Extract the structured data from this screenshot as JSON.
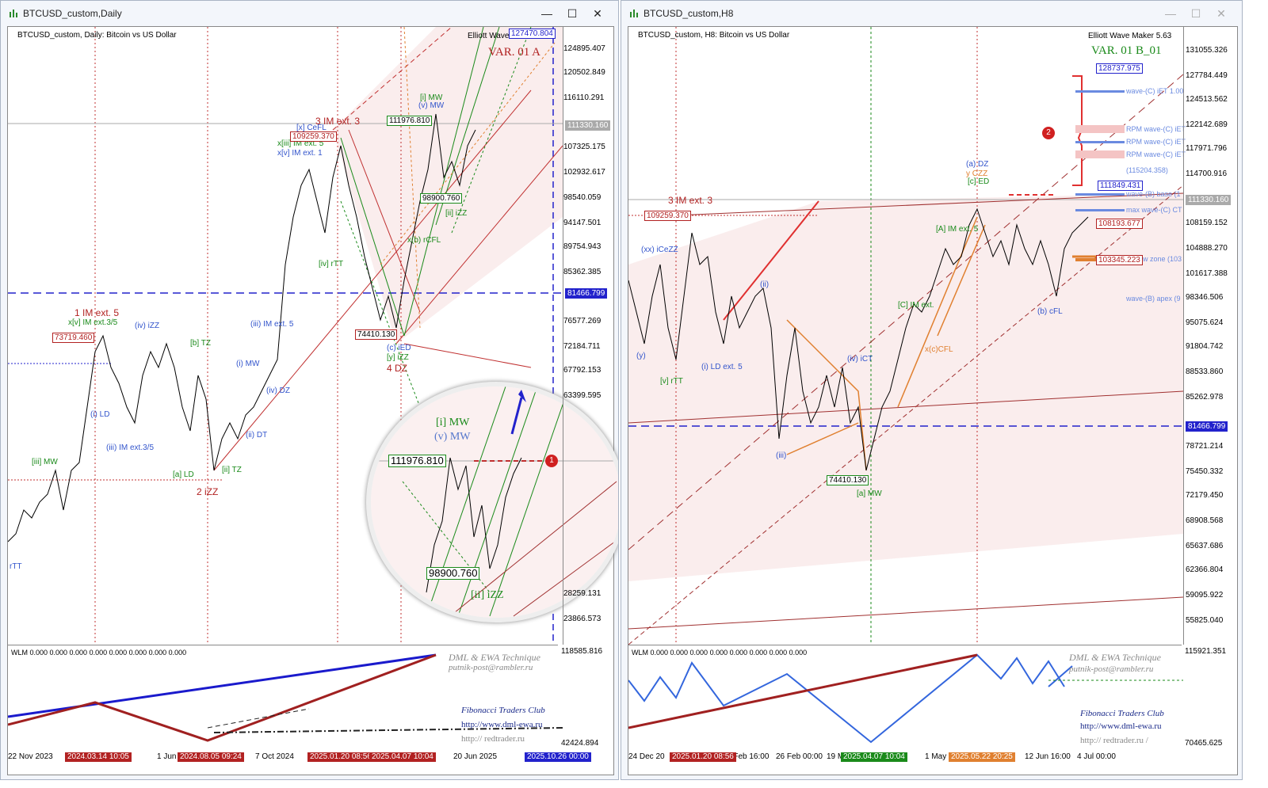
{
  "left": {
    "window_title": "BTCUSD_custom,Daily",
    "chart_info": "BTCUSD_custom, Daily:  Bitcoin vs US Dollar",
    "variant": "VAR. 01 A",
    "ewm": "Elliott Wave Ma",
    "prices": [
      "124895.407",
      "120502.849",
      "116110.291",
      "107325.175",
      "102932.617",
      "98540.059",
      "94147.501",
      "89754.943",
      "85362.385",
      "76577.269",
      "72184.711",
      "67792.153",
      "63399.595",
      "28259.131",
      "23866.573"
    ],
    "price_current": "111330.160",
    "price_hline": "81466.799",
    "price_top": "127470.804",
    "boxes": {
      "p1": "109259.370",
      "p2": "73719.460",
      "p3": "111976.810",
      "p4": "74410.130",
      "p5": "98900.760",
      "zoom1": "111976.810",
      "zoom2": "98900.760"
    },
    "dates": [
      "22 Nov 2023",
      "1 Jun",
      "7 Oct 2024",
      "20 Jun 2025"
    ],
    "date_highlights": [
      "2024.03.14 10:05",
      "2024.08.05 09:24",
      "2025.01.20 08:56",
      "2025.04.07 10:04",
      "2025.10.26 00:00"
    ],
    "wave_labels": {
      "im3": "3 IM ext. 3",
      "im1": "1 IM ext. 5",
      "zz2": "2 iZZ",
      "dz4": "4 DZ",
      "cefl": "[x] CeFL",
      "xiii": "x[iii] IM ext. 5",
      "xv": "x[v] IM ext. 1",
      "xiim": "x[v] IM ext.3/5",
      "iv_izz": "(iv) iZZ",
      "iii_im": "(iii) IM ext.3/5",
      "iii_im5": "(iii) IM ext. 5",
      "i_mw": "(i) MW",
      "iii_mw": "[iii] MW",
      "ld": "(i) LD",
      "aLD": "[a] LD",
      "tz": "[b] TZ",
      "iiTZ": "[ii] TZ",
      "iiDT": "(ii) DT",
      "ivDZ": "(iv) DZ",
      "iMW": "[i] MW",
      "vMW": "(v) MW",
      "iiizz": "[ii] iZZ",
      "cfl": "x(b) rCFL",
      "rtt": "[iv] rTT",
      "cied": "(c) iED",
      "yzz": "[y] iZZ",
      "tt": "rTT"
    },
    "wlm": "WLM 0.000 0.000 0.000 0.000 0.000 0.000 0.000 0.000",
    "ind_price": "118585.816",
    "ind_price2": "42424.894",
    "dml": "DML & EWA Technique",
    "email": "putnik-post@rambler.ru",
    "fib": "Fibonacci   Traders   Club",
    "url1": "http://www.dml-ewa.ru",
    "url2": "http://  redtrader.ru",
    "marker": "1"
  },
  "right": {
    "window_title": "BTCUSD_custom,H8",
    "chart_info": "BTCUSD_custom, H8:  Bitcoin vs US Dollar",
    "ewm": "Elliott Wave Maker 5.63",
    "variant": "VAR. 01 B_01",
    "prices": [
      "131055.326",
      "127784.449",
      "124513.562",
      "122142.689",
      "117971.796",
      "114700.916",
      "108159.152",
      "104888.270",
      "101617.388",
      "98346.506",
      "95075.624",
      "91804.742",
      "88533.860",
      "85262.978",
      "78721.214",
      "75450.332",
      "72179.450",
      "68908.568",
      "65637.686",
      "62366.804",
      "59095.922",
      "55825.040"
    ],
    "price_current": "111330.160",
    "price_hline": "81466.799",
    "price_top": "128737.975",
    "boxes": {
      "p1": "109259.370",
      "p2": "108193.677",
      "p3": "103345.223",
      "p4": "74410.130",
      "p5": "111849.431"
    },
    "level_labels": [
      "wave-(C) iET 1.00",
      "RPM wave-(C) iET",
      "RPM wave-(C) iET",
      "RPM wave-(C) iET",
      "(115204.358)",
      "wave-(B) base (1",
      "max wave-(C) CT",
      "low zone (103",
      "wave-(B) apex (9"
    ],
    "dates": [
      "24 Dec 20",
      "4 Feb 16:00",
      "26 Feb 00:00",
      "19 M",
      "1 May",
      "12 Jun 16:00",
      "4 Jul 00:00"
    ],
    "date_highlights": [
      "2025.01.20 08:56",
      "2025.04.07 10:04",
      "2025.05.22 20:25"
    ],
    "wave_labels": {
      "im3": "3 IM ext. 3",
      "xxcezz": "(xx) iCeZZ",
      "vrtt": "[v] rTT",
      "ild": "(i) LD ext. 5",
      "ii": "(ii)",
      "iii": "(iii)",
      "ivict": "(iv) iCT",
      "amw": "[a] MW",
      "adz": "(a) DZ",
      "yczz": "y CZZ",
      "ied": "[c] ED",
      "bcfl": "(b) cFL",
      "aimext": "[A] IM ext. 5",
      "imext": "[C] IM ext.",
      "xcfl": "x(c)CFL",
      "y": "(y)"
    },
    "wlm": "WLM 0.000 0.000 0.000 0.000 0.000 0.000 0.000 0.000",
    "ind_price": "115921.351",
    "ind_price2": "70465.625",
    "dml": "DML & EWA Technique",
    "email": "putnik-post@rambler.ru",
    "fib": "Fibonacci   Traders   Club",
    "url1": "http://www.dml-ewa.ru",
    "url2": "http://  redtrader.ru  /",
    "marker": "2"
  },
  "colors": {
    "red": "#b22222",
    "blue": "#1a1acc",
    "green": "#1a8a1a",
    "orange": "#e08030",
    "pink": "#f8e6e6"
  }
}
